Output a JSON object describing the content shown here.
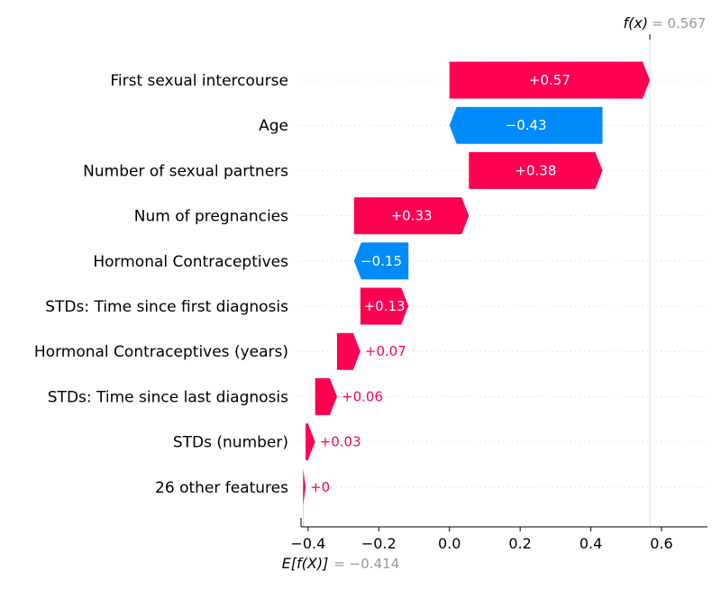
{
  "chart_data": {
    "type": "waterfall",
    "base_value": -0.414,
    "output_value": 0.567,
    "fx_label": "f(x)",
    "fx_value_text": "= 0.567",
    "efx_label": "E[f(X)]",
    "efx_value_text": "= −0.414",
    "xlim": [
      -0.42,
      0.73
    ],
    "x_ticks": [
      -0.4,
      -0.2,
      0.0,
      0.2,
      0.4,
      0.6
    ],
    "x_tick_labels": [
      "−0.4",
      "−0.2",
      "0.0",
      "0.2",
      "0.4",
      "0.6"
    ],
    "colors": {
      "positive": "#ff0051",
      "negative": "#008bfb"
    },
    "features": [
      {
        "name": "First sexual intercourse",
        "start": 0.0,
        "end": 0.567,
        "label": "+0.57"
      },
      {
        "name": "Age",
        "start": 0.433,
        "end": 0.0,
        "label": "−0.43"
      },
      {
        "name": "Number of sexual partners",
        "start": 0.055,
        "end": 0.433,
        "label": "+0.38"
      },
      {
        "name": "Num of pregnancies",
        "start": -0.27,
        "end": 0.055,
        "label": "+0.33"
      },
      {
        "name": "Hormonal Contraceptives",
        "start": -0.116,
        "end": -0.27,
        "label": "−0.15"
      },
      {
        "name": "STDs: Time since first diagnosis",
        "start": -0.252,
        "end": -0.116,
        "label": "+0.13"
      },
      {
        "name": "Hormonal Contraceptives (years)",
        "start": -0.318,
        "end": -0.252,
        "label": "+0.07"
      },
      {
        "name": "STDs: Time since last diagnosis",
        "start": -0.38,
        "end": -0.318,
        "label": "+0.06"
      },
      {
        "name": "STDs (number)",
        "start": -0.407,
        "end": -0.38,
        "label": "+0.03"
      },
      {
        "name": "26 other features",
        "start": -0.414,
        "end": -0.407,
        "label": "+0"
      }
    ]
  }
}
